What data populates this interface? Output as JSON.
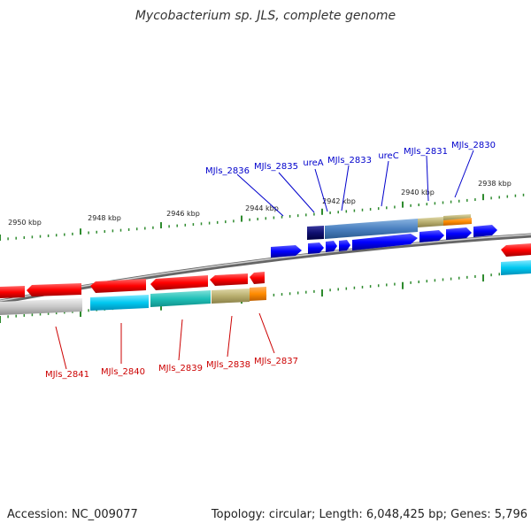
{
  "title": "Mycobacterium sp. JLS, complete genome",
  "footer": {
    "accession": "Accession: NC_009077",
    "summary": "Topology: circular; Length: 6,048,425 bp; Genes: 5,796"
  },
  "colors": {
    "forward_label": "#0000cc",
    "reverse_label": "#cc0000",
    "tick": "#2e8b2e",
    "backbone": "#888888"
  },
  "ruler_upper": [
    "2950 kbp",
    "2948 kbp",
    "2946 kbp",
    "2944 kbp",
    "2942 kbp",
    "2940 kbp",
    "2938 kbp"
  ],
  "forward_labels": [
    "MJls_2836",
    "MJls_2835",
    "ureA",
    "MJls_2833",
    "ureC",
    "MJls_2831",
    "MJls_2830"
  ],
  "reverse_labels": [
    "MJls_2841",
    "MJls_2840",
    "MJls_2839",
    "MJls_2838",
    "MJls_2837"
  ]
}
